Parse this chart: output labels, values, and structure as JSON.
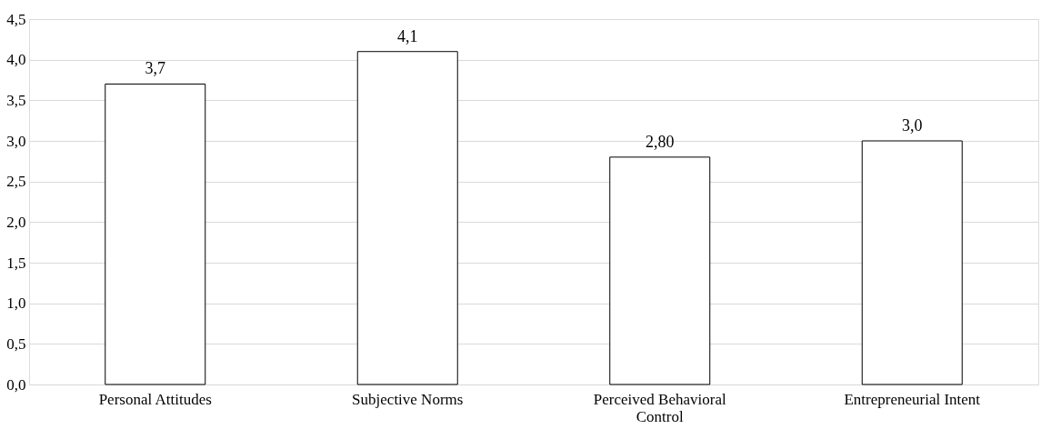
{
  "chart_data": {
    "type": "bar",
    "categories": [
      "Personal Attitudes",
      "Subjective Norms",
      "Perceived Behavioral Control",
      "Entrepreneurial Intent"
    ],
    "values": [
      3.7,
      4.1,
      2.8,
      3.0
    ],
    "value_labels": [
      "3,7",
      "4,1",
      "2,80",
      "3,0"
    ],
    "color": "#ffffff",
    "ylim": [
      0,
      4.5
    ],
    "yticks": [
      {
        "value": 0,
        "label": "0,0"
      },
      {
        "value": 0.5,
        "label": "0,5"
      },
      {
        "value": 1,
        "label": "1,0"
      },
      {
        "value": 1.5,
        "label": "1,5"
      },
      {
        "value": 2,
        "label": "2,0"
      },
      {
        "value": 2.5,
        "label": "2,5"
      },
      {
        "value": 3,
        "label": "3,0"
      },
      {
        "value": 3.5,
        "label": "3,5"
      },
      {
        "value": 4,
        "label": "4,0"
      },
      {
        "value": 4.5,
        "label": "4,5"
      }
    ],
    "grid": "y"
  }
}
